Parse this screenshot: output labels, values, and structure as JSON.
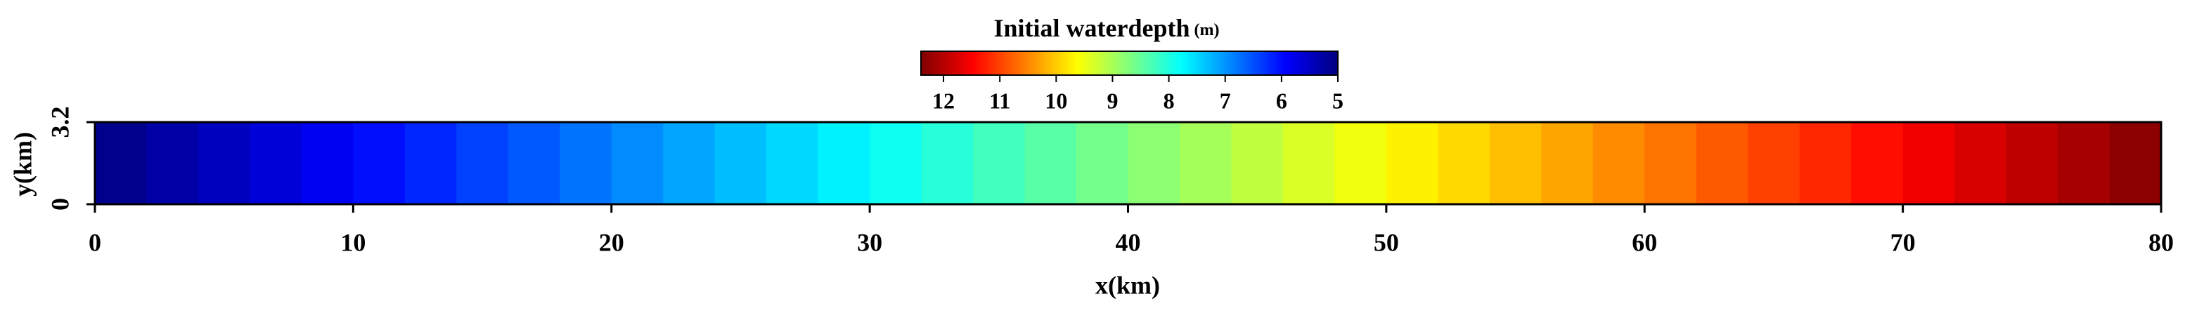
{
  "chart_data": {
    "type": "heatmap",
    "colorbar_title": "Initial waterdepth",
    "colorbar_unit": "(m)",
    "xlabel": "x(km)",
    "ylabel": "y(km)",
    "xlim": [
      0,
      80
    ],
    "xticks": [
      0,
      10,
      20,
      30,
      40,
      50,
      60,
      70,
      80
    ],
    "ylim": [
      0,
      3.2
    ],
    "yticks": [
      0,
      3.2
    ],
    "colormap": "jet",
    "clim": [
      5,
      12.4
    ],
    "cticks": [
      12,
      11,
      10,
      9,
      8,
      7,
      6,
      5
    ],
    "colorbar_reversed": true,
    "x": [
      1,
      3,
      5,
      7,
      9,
      11,
      13,
      15,
      17,
      19,
      21,
      23,
      25,
      27,
      29,
      31,
      33,
      35,
      37,
      39,
      41,
      43,
      45,
      47,
      49,
      51,
      53,
      55,
      57,
      59,
      61,
      63,
      65,
      67,
      69,
      71,
      73,
      75,
      77,
      79
    ],
    "values": [
      5.09,
      5.28,
      5.46,
      5.65,
      5.83,
      6.02,
      6.2,
      6.39,
      6.57,
      6.76,
      6.94,
      7.13,
      7.31,
      7.5,
      7.68,
      7.87,
      8.05,
      8.24,
      8.42,
      8.61,
      8.79,
      8.98,
      9.16,
      9.35,
      9.53,
      9.72,
      9.9,
      10.09,
      10.27,
      10.46,
      10.64,
      10.83,
      11.01,
      11.2,
      11.38,
      11.57,
      11.75,
      11.94,
      12.12,
      12.31
    ]
  }
}
